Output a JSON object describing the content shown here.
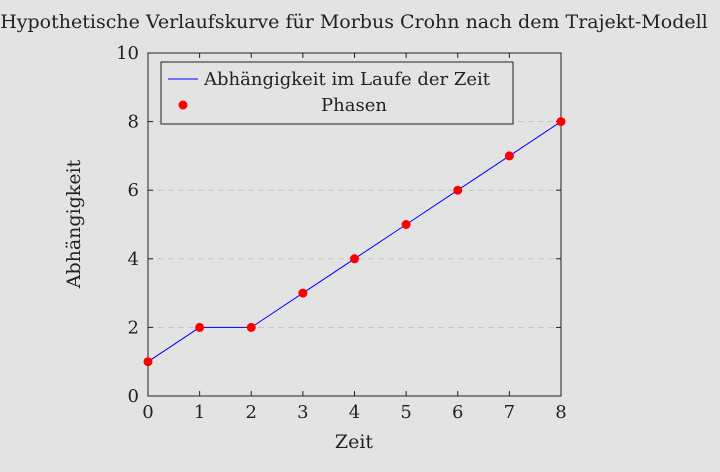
{
  "chart_data": {
    "type": "line",
    "title": "Hypothetische Verlaufskurve für Morbus Crohn nach dem Trajekt-Modell",
    "xlabel": "Zeit",
    "ylabel": "Abhängigkeit",
    "xlim": [
      0,
      8
    ],
    "ylim": [
      0,
      10
    ],
    "xticks": [
      "0",
      "1",
      "2",
      "3",
      "4",
      "5",
      "6",
      "7",
      "8"
    ],
    "yticks": [
      "0",
      "2",
      "4",
      "6",
      "8",
      "10"
    ],
    "grid": "horizontal dashed",
    "legend_position": "top",
    "series": [
      {
        "name": "Abhängigkeit im Laufe der Zeit",
        "style": "line",
        "color": "#0000ff",
        "x": [
          0,
          1,
          2,
          3,
          4,
          5,
          6,
          7,
          8
        ],
        "y": [
          1,
          2,
          2,
          3,
          4,
          5,
          6,
          7,
          8
        ]
      },
      {
        "name": "Phasen",
        "style": "markers",
        "color": "#ff0000",
        "x": [
          0,
          1,
          2,
          3,
          4,
          5,
          6,
          7,
          8
        ],
        "y": [
          1,
          2,
          2,
          3,
          4,
          5,
          6,
          7,
          8
        ]
      }
    ]
  }
}
